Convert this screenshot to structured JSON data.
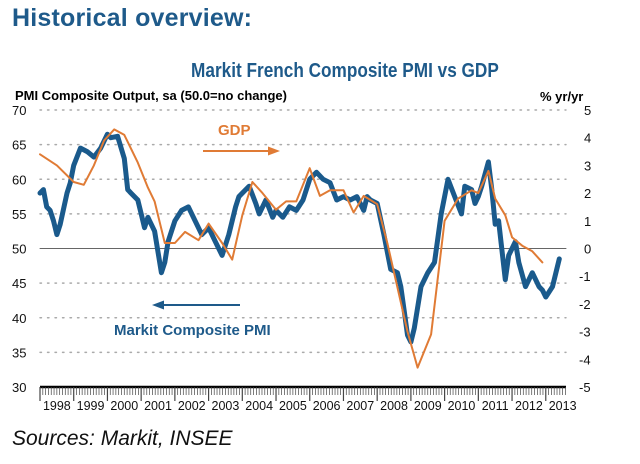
{
  "heading": "Historical overview:",
  "sources": "Sources: Markit, INSEE",
  "chart_data": {
    "type": "line",
    "title": "Markit French Composite PMI vs GDP",
    "ylabel": "PMI Composite Output, sa (50.0=no change)",
    "y2label": "% yr/yr",
    "xlabel": "",
    "xlim": [
      1998.0,
      2013.6
    ],
    "ylim": [
      30,
      70
    ],
    "y2lim": [
      -5,
      5
    ],
    "yticks": [
      30,
      35,
      40,
      45,
      50,
      55,
      60,
      65,
      70
    ],
    "y2ticks": [
      -5,
      -4,
      -3,
      -2,
      -1,
      0,
      1,
      2,
      3,
      4,
      5
    ],
    "xtick_labels": [
      "1998",
      "1999",
      "2000",
      "2001",
      "2002",
      "2003",
      "2004",
      "2005",
      "2006",
      "2007",
      "2008",
      "2009",
      "2010",
      "2011",
      "2012",
      "2013"
    ],
    "grid": "horizontal-dotted",
    "reference_line": 50,
    "annotations": [
      {
        "text": "GDP",
        "arrow": "right",
        "series": "GDP"
      },
      {
        "text": "Markit Composite PMI",
        "arrow": "left",
        "series": "Markit Composite PMI"
      }
    ],
    "colors": {
      "pmi": "#1a5a8c",
      "gdp": "#e07b35"
    },
    "series": [
      {
        "name": "Markit Composite PMI",
        "axis": "left",
        "x": [
          1998.0,
          1998.1,
          1998.2,
          1998.3,
          1998.4,
          1998.5,
          1998.6,
          1998.8,
          1998.9,
          1999.0,
          1999.2,
          1999.4,
          1999.6,
          1999.8,
          2000.0,
          2000.1,
          2000.3,
          2000.5,
          2000.6,
          2000.7,
          2000.9,
          2001.0,
          2001.1,
          2001.2,
          2001.4,
          2001.5,
          2001.6,
          2001.7,
          2001.8,
          2001.9,
          2002.0,
          2002.2,
          2002.4,
          2002.6,
          2002.8,
          2002.9,
          2003.0,
          2003.2,
          2003.4,
          2003.6,
          2003.8,
          2003.9,
          2004.0,
          2004.2,
          2004.4,
          2004.5,
          2004.7,
          2004.9,
          2005.0,
          2005.2,
          2005.4,
          2005.6,
          2005.8,
          2006.0,
          2006.2,
          2006.4,
          2006.6,
          2006.8,
          2007.0,
          2007.2,
          2007.4,
          2007.6,
          2007.7,
          2007.8,
          2008.0,
          2008.2,
          2008.4,
          2008.6,
          2008.7,
          2008.8,
          2008.9,
          2009.0,
          2009.1,
          2009.3,
          2009.5,
          2009.7,
          2009.9,
          2010.1,
          2010.3,
          2010.5,
          2010.6,
          2010.8,
          2010.9,
          2011.0,
          2011.1,
          2011.3,
          2011.4,
          2011.5,
          2011.6,
          2011.8,
          2011.9,
          2012.1,
          2012.2,
          2012.4,
          2012.6,
          2012.8,
          2012.9,
          2013.0,
          2013.2,
          2013.4
        ],
        "values": [
          58.0,
          58.5,
          56.0,
          55.5,
          54.0,
          52.0,
          53.5,
          58.0,
          59.5,
          62.0,
          64.5,
          64.0,
          63.2,
          64.5,
          66.5,
          66.0,
          66.2,
          63.0,
          58.5,
          58.0,
          57.0,
          55.0,
          53.0,
          54.5,
          52.5,
          49.5,
          46.5,
          48.0,
          51.0,
          52.5,
          54.0,
          55.5,
          56.0,
          54.0,
          52.0,
          52.5,
          53.0,
          51.0,
          49.0,
          52.0,
          56.0,
          57.5,
          58.0,
          59.0,
          56.5,
          55.0,
          57.0,
          54.5,
          55.5,
          54.5,
          56.0,
          55.5,
          57.0,
          60.0,
          61.0,
          60.0,
          59.5,
          57.0,
          57.5,
          57.0,
          57.5,
          55.5,
          57.5,
          57.0,
          56.5,
          52.0,
          47.0,
          46.5,
          44.5,
          41.0,
          37.5,
          36.5,
          38.5,
          44.5,
          46.5,
          48.0,
          55.0,
          60.0,
          57.5,
          55.0,
          59.0,
          58.5,
          56.5,
          57.5,
          59.0,
          62.5,
          58.5,
          53.5,
          54.0,
          45.5,
          49.0,
          51.0,
          48.0,
          44.5,
          46.5,
          44.5,
          44.0,
          43.0,
          44.5,
          48.5
        ]
      },
      {
        "name": "GDP",
        "axis": "right",
        "x": [
          1998.0,
          1998.5,
          1999.0,
          1999.3,
          1999.6,
          1999.9,
          2000.2,
          2000.5,
          2000.9,
          2001.2,
          2001.4,
          2001.7,
          2002.0,
          2002.3,
          2002.7,
          2003.0,
          2003.4,
          2003.7,
          2004.0,
          2004.3,
          2004.6,
          2005.0,
          2005.3,
          2005.6,
          2006.0,
          2006.3,
          2006.6,
          2007.0,
          2007.3,
          2007.6,
          2008.0,
          2008.3,
          2008.6,
          2008.9,
          2009.2,
          2009.6,
          2010.0,
          2010.4,
          2010.8,
          2011.0,
          2011.3,
          2011.5,
          2011.8,
          2012.0,
          2012.3,
          2012.6,
          2012.9
        ],
        "values": [
          3.4,
          3.0,
          2.4,
          2.3,
          3.0,
          3.9,
          4.3,
          4.1,
          3.1,
          2.2,
          1.7,
          0.2,
          0.2,
          0.6,
          0.3,
          0.9,
          0.2,
          -0.4,
          1.2,
          2.4,
          2.0,
          1.4,
          1.7,
          1.7,
          2.9,
          1.9,
          2.1,
          2.1,
          1.3,
          1.9,
          1.6,
          0.2,
          -1.4,
          -3.0,
          -4.3,
          -3.1,
          1.0,
          1.8,
          2.1,
          2.0,
          2.8,
          1.8,
          1.2,
          0.4,
          0.1,
          -0.1,
          -0.5
        ]
      }
    ]
  }
}
